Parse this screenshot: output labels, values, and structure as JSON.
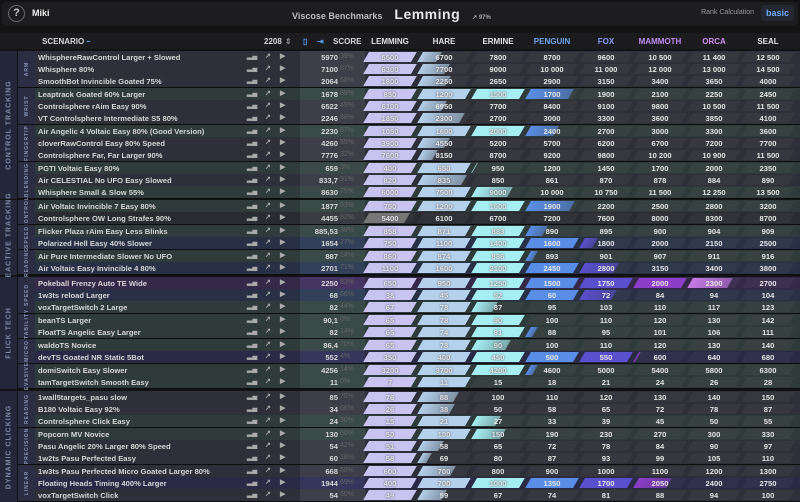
{
  "topbar": {
    "help": "?",
    "user": "Miki",
    "subtitle": "Viscose Benchmarks",
    "rank": "Lemming",
    "trend": "↗ 97%",
    "rank_calc_label": "Rank Calculation",
    "rank_calc_value": "basic"
  },
  "header": {
    "scenario": "SCENARIO",
    "count": "2208",
    "score": "SCORE",
    "ranks": [
      {
        "name": "LEMMING",
        "color": "#c9c3f0",
        "text": "#e0e0e0"
      },
      {
        "name": "HARE",
        "color": "#b4d0ea",
        "text": "#e0e0e0"
      },
      {
        "name": "ERMINE",
        "color": "#a6eef2",
        "text": "#e0e0e0"
      },
      {
        "name": "PENGUIN",
        "color": "#5a8ee6",
        "text": "#6fa2ee"
      },
      {
        "name": "FOX",
        "color": "#5a4fcc",
        "text": "#8a9cf2"
      },
      {
        "name": "MAMMOTH",
        "color": "#8c3ec8",
        "text": "#c08cf2"
      },
      {
        "name": "ORCA",
        "color": "#c67ae6",
        "text": "#d28ef2"
      },
      {
        "name": "SEAL",
        "color": "#e0e0e0",
        "text": "#e0e0e0"
      }
    ]
  },
  "groups": [
    {
      "category": "CONTROL TRACKING",
      "subgroups": [
        {
          "name": "ARM",
          "rows": [
            {
              "name": "WhisphereRawControl Larger + Slowed",
              "score": "5970",
              "pct": "39%",
              "t": [
                5500,
                6700,
                7800,
                8700,
                9600,
                10500,
                11400,
                12500
              ]
            },
            {
              "name": "Whisphere 80%",
              "score": "7100",
              "pct": "57%",
              "t": [
                6300,
                7700,
                9000,
                10000,
                11000,
                12000,
                13000,
                14500
              ]
            },
            {
              "name": "SmoothBot Invincible Goated 75%",
              "score": "2064",
              "pct": "58%",
              "t": [
                1800,
                2250,
                2650,
                2900,
                3150,
                3400,
                3650,
                4000
              ]
            }
          ]
        },
        {
          "name": "WRIST",
          "rows": [
            {
              "name": "Leaptrack Goated 60% Larger",
              "score": "1678",
              "pct": "89%",
              "t": [
                850,
                1200,
                1500,
                1700,
                1900,
                2100,
                2250,
                2450
              ]
            },
            {
              "name": "Controlsphere rAim Easy 90%",
              "score": "6522",
              "pct": "49%",
              "t": [
                6100,
                6950,
                7700,
                8400,
                9100,
                9800,
                10500,
                11500
              ]
            },
            {
              "name": "VT Controlsphere Intermediate S5 80%",
              "score": "2246",
              "pct": "88%",
              "t": [
                1850,
                2300,
                2700,
                3000,
                3300,
                3600,
                3850,
                4100
              ]
            }
          ]
        },
        {
          "name": "FINGERTIP",
          "rows": [
            {
              "name": "Air Angelic 4 Voltaic Easy 80% (Good Version)",
              "score": "2230",
              "pct": "57%",
              "t": [
                1050,
                1600,
                2000,
                2400,
                2700,
                3000,
                3300,
                3600
              ]
            },
            {
              "name": "cloverRawControl Easy 80% Speed",
              "score": "4260",
              "pct": "55%",
              "t": [
                3900,
                4550,
                5200,
                5700,
                6200,
                6700,
                7200,
                7700
              ]
            },
            {
              "name": "Controlsphere Far, Far Larger 90%",
              "score": "7776",
              "pct": "32%",
              "t": [
                7600,
                8150,
                8700,
                9200,
                9800,
                10200,
                10900,
                11500
              ]
            }
          ]
        },
        {
          "name": "BLENDING",
          "rows": [
            {
              "name": "PGTI Voltaic Easy 80%",
              "score": "659",
              "pct": "3%",
              "t": [
                400,
                650,
                950,
                1200,
                1450,
                1700,
                2000,
                2350
              ]
            },
            {
              "name": "Air CELESTIAL No UFO Easy Slowed",
              "score": "833,7",
              "pct": "91%",
              "t": [
                820,
                835,
                850,
                861,
                870,
                878,
                884,
                890
              ]
            },
            {
              "name": "Whisphere Small & Slow 55%",
              "score": "8630",
              "pct": "75%",
              "t": [
                6000,
                7500,
                9000,
                10000,
                10750,
                11500,
                12250,
                13500
              ]
            }
          ]
        }
      ]
    },
    {
      "category": "REACTIVE TRACKING",
      "subgroups": [
        {
          "name": "CONTROL",
          "rows": [
            {
              "name": "Air Voltaic Invincible 7 Easy 80%",
              "score": "1877",
              "pct": "93%",
              "t": [
                750,
                1200,
                1600,
                1900,
                2200,
                2500,
                2800,
                3200
              ]
            },
            {
              "name": "Controlsphere OW Long Strafes 90%",
              "score": "4455",
              "pct": "82%",
              "t": [
                5400,
                6100,
                6700,
                7200,
                7600,
                8000,
                8300,
                8700
              ]
            }
          ]
        },
        {
          "name": "SPEED",
          "rows": [
            {
              "name": "Flicker Plaza rAim Easy Less Blinks",
              "score": "885,53",
              "pct": "39%",
              "t": [
                858,
                871,
                883,
                890,
                895,
                900,
                904,
                909
              ]
            },
            {
              "name": "Polarized Hell Easy 40% Slower",
              "score": "1654",
              "pct": "27%",
              "t": [
                750,
                1100,
                1400,
                1600,
                1800,
                2000,
                2150,
                2500
              ]
            }
          ]
        },
        {
          "name": "READING",
          "rows": [
            {
              "name": "Air Pure Intermediate Slower No UFO",
              "score": "887",
              "pct": "14%",
              "t": [
                860,
                874,
                886,
                893,
                901,
                907,
                911,
                916
              ]
            },
            {
              "name": "Air Voltaic Easy Invincible 4 80%",
              "score": "2701",
              "pct": "71%",
              "t": [
                1100,
                1600,
                2100,
                2450,
                2800,
                3150,
                3400,
                3800
              ]
            }
          ]
        }
      ]
    },
    {
      "category": "FLICK TECH",
      "subgroups": [
        {
          "name": "SPEED",
          "rows": [
            {
              "name": "Pokeball Frenzy Auto TE Wide",
              "score": "2250",
              "pct": "83%",
              "t": [
                650,
                950,
                1250,
                1500,
                1750,
                2000,
                2300,
                2700
              ]
            },
            {
              "name": "1w3ts reload Larger",
              "score": "68",
              "pct": "66%",
              "t": [
                38,
                45,
                52,
                60,
                72,
                84,
                94,
                104
              ]
            },
            {
              "name": "voxTargetSwitch 2 Large",
              "score": "82",
              "pct": "44%",
              "t": [
                67,
                78,
                87,
                95,
                103,
                110,
                117,
                123
              ]
            }
          ]
        },
        {
          "name": "STABILITY",
          "rows": [
            {
              "name": "beanTS Larger",
              "score": "90,1",
              "pct": "0%",
              "t": [
                65,
                78,
                90,
                100,
                110,
                120,
                130,
                142
              ]
            },
            {
              "name": "FloatTS Angelic Easy Larger",
              "score": "82",
              "pct": "14%",
              "t": [
                65,
                74,
                81,
                88,
                95,
                101,
                106,
                111
              ]
            }
          ]
        },
        {
          "name": "MICRO",
          "rows": [
            {
              "name": "waldoTS Novice",
              "score": "86,4",
              "pct": "70%",
              "t": [
                65,
                78,
                90,
                100,
                110,
                120,
                130,
                140
              ]
            },
            {
              "name": "devTS Goated NR Static 5Bot",
              "score": "552",
              "pct": "4%",
              "t": [
                350,
                400,
                450,
                500,
                550,
                600,
                640,
                680
              ]
            }
          ]
        },
        {
          "name": "EVASIVE",
          "rows": [
            {
              "name": "domiSwitch Easy Slower",
              "score": "4256",
              "pct": "14%",
              "t": [
                3200,
                3700,
                4200,
                4600,
                5000,
                5400,
                5800,
                6300
              ]
            },
            {
              "name": "tamTargetSwitch Smooth Easy",
              "score": "11",
              "pct": "0%",
              "t": [
                7,
                11,
                15,
                18,
                21,
                24,
                26,
                28
              ]
            }
          ]
        }
      ]
    },
    {
      "category": "DYNAMIC CLICKING",
      "subgroups": [
        {
          "name": "READING",
          "rows": [
            {
              "name": "1wall5targets_pasu slow",
              "score": "85",
              "pct": "75%",
              "t": [
                76,
                88,
                100,
                110,
                120,
                130,
                140,
                150
              ]
            },
            {
              "name": "B180 Voltaic Easy 92%",
              "score": "34",
              "pct": "66%",
              "t": [
                26,
                38,
                50,
                58,
                65,
                72,
                78,
                87
              ]
            },
            {
              "name": "Controlsphere Click Easy",
              "score": "24",
              "pct": "50%",
              "t": [
                15,
                21,
                27,
                33,
                39,
                45,
                50,
                55
              ]
            }
          ]
        },
        {
          "name": "PRECISION",
          "rows": [
            {
              "name": "Popcorn MV Novice",
              "score": "130",
              "pct": "60%",
              "t": [
                50,
                100,
                150,
                190,
                230,
                270,
                300,
                330
              ]
            },
            {
              "name": "Pasu Angelic 20% Larger 80% Speed",
              "score": "54",
              "pct": "42%",
              "t": [
                51,
                58,
                65,
                72,
                78,
                84,
                90,
                97
              ]
            },
            {
              "name": "1w2ts Pasu Perfected Easy",
              "score": "60",
              "pct": "18%",
              "t": [
                58,
                69,
                80,
                87,
                93,
                99,
                105,
                110
              ]
            }
          ]
        },
        {
          "name": "LINEAR",
          "rows": [
            {
              "name": "1w3ts Pasu Perfected Micro Goated Larger 80%",
              "score": "668",
              "pct": "68%",
              "t": [
                600,
                700,
                800,
                900,
                1000,
                1100,
                1200,
                1300
              ]
            },
            {
              "name": "Floating Heads Timing 400% Larger",
              "score": "1944",
              "pct": "69%",
              "t": [
                400,
                700,
                1000,
                1350,
                1700,
                2050,
                2400,
                2750
              ]
            },
            {
              "name": "voxTargetSwitch Click",
              "score": "54",
              "pct": "50%",
              "t": [
                49,
                59,
                67,
                74,
                81,
                88,
                94,
                100
              ]
            }
          ]
        }
      ]
    }
  ]
}
